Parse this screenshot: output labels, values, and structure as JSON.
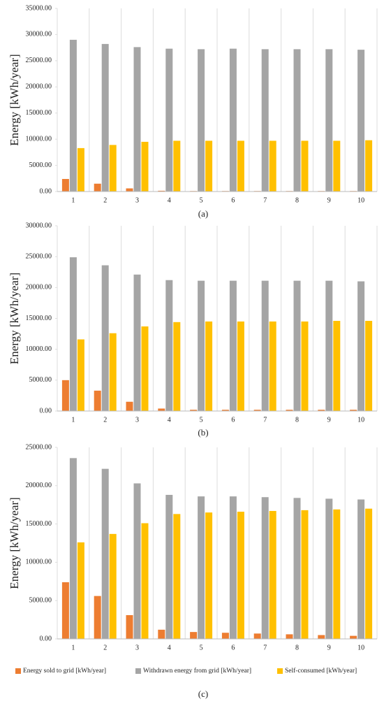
{
  "chart_data": [
    {
      "type": "bar",
      "caption": "(a)",
      "y_label": "Energy [kWh/year]",
      "categories": [
        "1",
        "2",
        "3",
        "4",
        "5",
        "6",
        "7",
        "8",
        "9",
        "10"
      ],
      "series": [
        {
          "name": "Energy sold to grid [kWh/year]",
          "color": "#ed7d31",
          "values": [
            2400,
            1500,
            600,
            150,
            100,
            100,
            100,
            100,
            100,
            100
          ]
        },
        {
          "name": "Withdrawn energy from grid [kWh/year]",
          "color": "#a5a5a5",
          "values": [
            29000,
            28200,
            27600,
            27300,
            27200,
            27300,
            27200,
            27200,
            27200,
            27100
          ]
        },
        {
          "name": "Self-consumed [kWh/year]",
          "color": "#ffc000",
          "values": [
            8300,
            8900,
            9500,
            9700,
            9700,
            9700,
            9700,
            9700,
            9700,
            9800
          ]
        }
      ],
      "ylim": [
        0,
        35000
      ],
      "yticks": [
        {
          "value": 0,
          "label": "0.00"
        },
        {
          "value": 5000,
          "label": "5000.00"
        },
        {
          "value": 10000,
          "label": "10000.00"
        },
        {
          "value": 15000,
          "label": "15000.00"
        },
        {
          "value": 20000,
          "label": "20000.00"
        },
        {
          "value": 25000,
          "label": "25000.00"
        },
        {
          "value": 30000,
          "label": "30000.00"
        },
        {
          "value": 35000,
          "label": "35000.00"
        }
      ],
      "vertical_grid": true,
      "legend": false
    },
    {
      "type": "bar",
      "caption": "(b)",
      "y_label": "Energy [kWh/year]",
      "categories": [
        "1",
        "2",
        "3",
        "4",
        "5",
        "6",
        "7",
        "8",
        "9",
        "10"
      ],
      "series": [
        {
          "name": "Energy sold to grid [kWh/year]",
          "color": "#ed7d31",
          "values": [
            5000,
            3300,
            1500,
            400,
            200,
            200,
            200,
            200,
            200,
            200
          ]
        },
        {
          "name": "Withdrawn energy from grid [kWh/year]",
          "color": "#a5a5a5",
          "values": [
            24900,
            23600,
            22100,
            21200,
            21100,
            21100,
            21100,
            21100,
            21100,
            21000
          ]
        },
        {
          "name": "Self-consumed [kWh/year]",
          "color": "#ffc000",
          "values": [
            11600,
            12600,
            13700,
            14400,
            14500,
            14500,
            14500,
            14500,
            14600,
            14600
          ]
        }
      ],
      "ylim": [
        0,
        30000
      ],
      "yticks": [
        {
          "value": 0,
          "label": "0.00"
        },
        {
          "value": 5000,
          "label": "5000.00"
        },
        {
          "value": 10000,
          "label": "10000.00"
        },
        {
          "value": 15000,
          "label": "15000.00"
        },
        {
          "value": 20000,
          "label": "20000.00"
        },
        {
          "value": 25000,
          "label": "25000.00"
        },
        {
          "value": 30000,
          "label": "30000.00"
        }
      ],
      "vertical_grid": true,
      "legend": false
    },
    {
      "type": "bar",
      "caption": "(c)",
      "y_label": "Energy [kWh/year]",
      "categories": [
        "1",
        "2",
        "3",
        "4",
        "5",
        "6",
        "7",
        "8",
        "9",
        "10"
      ],
      "series": [
        {
          "name": "Energy sold to grid [kWh/year]",
          "color": "#ed7d31",
          "values": [
            7400,
            5600,
            3100,
            1200,
            900,
            800,
            700,
            600,
            500,
            400
          ]
        },
        {
          "name": "Withdrawn energy from grid [kWh/year]",
          "color": "#a5a5a5",
          "values": [
            23600,
            22200,
            20300,
            18800,
            18600,
            18600,
            18500,
            18400,
            18300,
            18200
          ]
        },
        {
          "name": "Self-consumed [kWh/year]",
          "color": "#ffc000",
          "values": [
            12600,
            13700,
            15100,
            16300,
            16500,
            16600,
            16700,
            16800,
            16900,
            17000
          ]
        }
      ],
      "ylim": [
        0,
        25000
      ],
      "yticks": [
        {
          "value": 0,
          "label": "0.00"
        },
        {
          "value": 5000,
          "label": "5000.00"
        },
        {
          "value": 10000,
          "label": "10000.00"
        },
        {
          "value": 15000,
          "label": "15000.00"
        },
        {
          "value": 20000,
          "label": "20000.00"
        },
        {
          "value": 25000,
          "label": "25000.00"
        }
      ],
      "vertical_grid": true,
      "legend": "bottom"
    }
  ]
}
